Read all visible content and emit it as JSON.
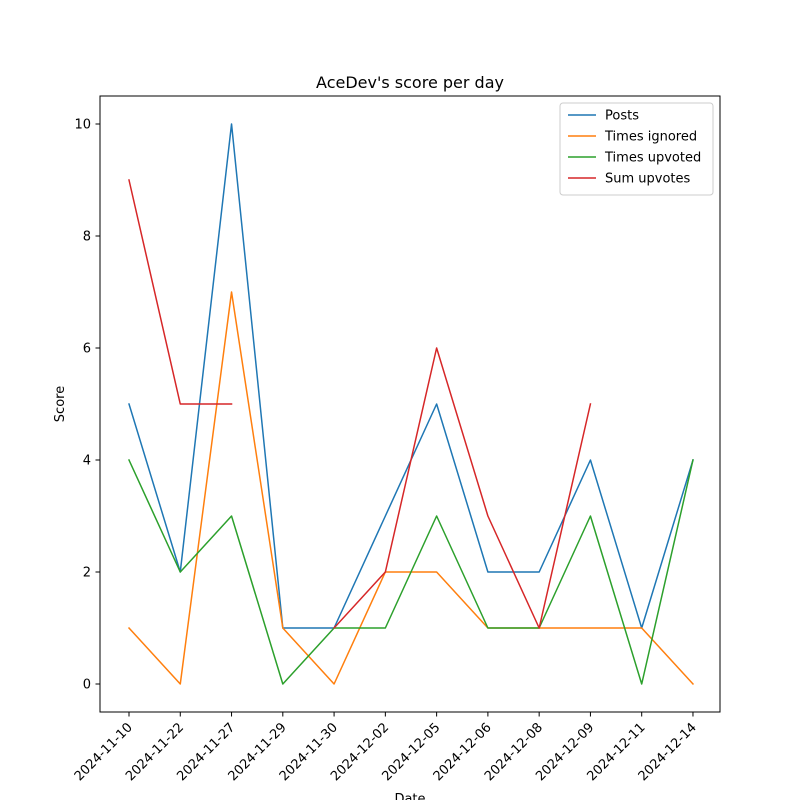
{
  "chart_data": {
    "type": "line",
    "title": "AceDev's score per day",
    "xlabel": "Date",
    "ylabel": "Score",
    "categories": [
      "2024-11-10",
      "2024-11-22",
      "2024-11-27",
      "2024-11-29",
      "2024-11-30",
      "2024-12-02",
      "2024-12-05",
      "2024-12-06",
      "2024-12-08",
      "2024-12-09",
      "2024-12-11",
      "2024-12-14"
    ],
    "ylim": [
      -0.5,
      10.5
    ],
    "yticks": [
      0,
      2,
      4,
      6,
      8,
      10
    ],
    "grid": false,
    "legend_position": "top-right",
    "series": [
      {
        "name": "Posts",
        "color": "#1f77b4",
        "values": [
          5,
          2,
          10,
          1,
          1,
          3,
          5,
          2,
          2,
          4,
          1,
          4
        ]
      },
      {
        "name": "Times ignored",
        "color": "#ff7f0e",
        "values": [
          1,
          0,
          7,
          1,
          0,
          2,
          2,
          1,
          1,
          1,
          1,
          0
        ]
      },
      {
        "name": "Times upvoted",
        "color": "#2ca02c",
        "values": [
          4,
          2,
          3,
          0,
          1,
          1,
          3,
          1,
          1,
          3,
          0,
          4
        ]
      },
      {
        "name": "Sum upvotes",
        "color": "#d62728",
        "values": [
          9,
          5,
          5,
          null,
          1,
          2,
          6,
          3,
          1,
          5,
          null,
          null
        ]
      }
    ]
  }
}
